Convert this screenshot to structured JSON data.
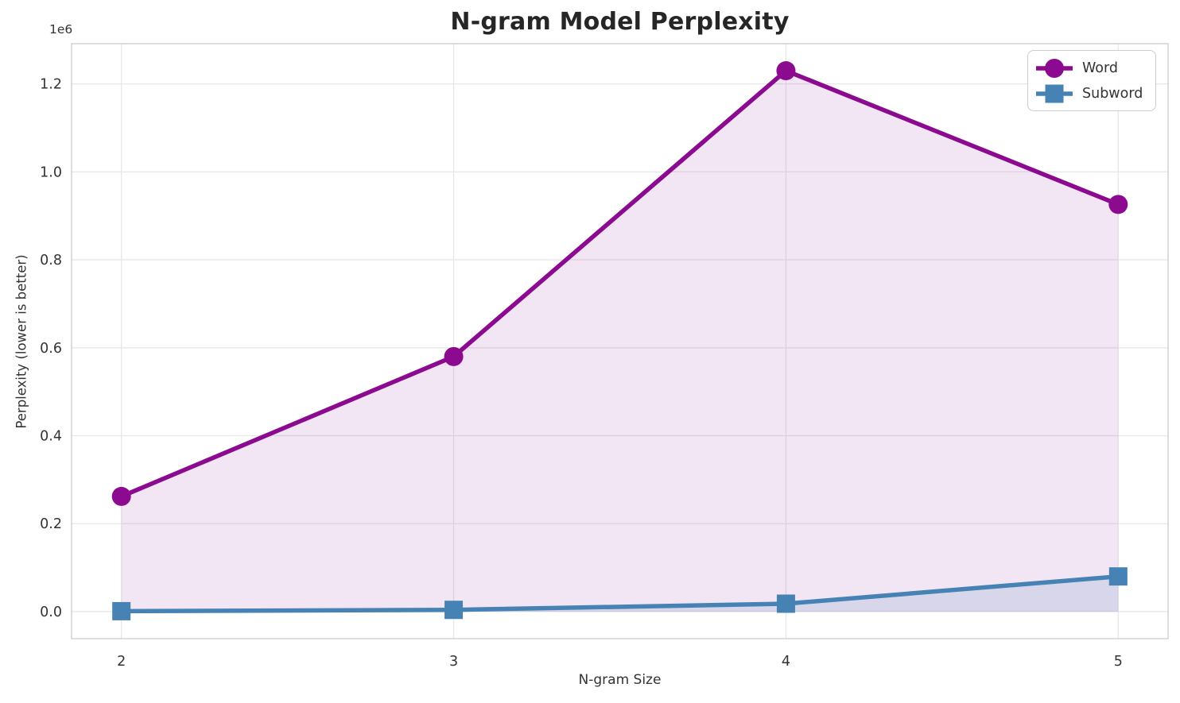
{
  "chart_data": {
    "type": "line",
    "title": "N-gram Model Perplexity",
    "xlabel": "N-gram Size",
    "ylabel": "Perplexity (lower is better)",
    "y_offset_label": "1e6",
    "x": [
      2,
      3,
      4,
      5
    ],
    "series": [
      {
        "name": "Word",
        "color": "#8B0A8F",
        "marker": "circle",
        "fill_alpha": 0.1,
        "values": [
          262000,
          580000,
          1230000,
          926000
        ]
      },
      {
        "name": "Subword",
        "color": "#4682B4",
        "marker": "square",
        "fill_alpha": 0.15,
        "values": [
          1000,
          4000,
          18000,
          80000
        ]
      }
    ],
    "xlim": [
      1.85,
      5.15
    ],
    "ylim": [
      -61500,
      1291500
    ],
    "xticks": [
      2,
      3,
      4,
      5
    ],
    "xtick_labels": [
      "2",
      "3",
      "4",
      "5"
    ],
    "yticks": [
      0,
      200000,
      400000,
      600000,
      800000,
      1000000,
      1200000
    ],
    "ytick_labels": [
      "0.0",
      "0.2",
      "0.4",
      "0.6",
      "0.8",
      "1.0",
      "1.2"
    ],
    "grid": true,
    "area_fill_to_zero": true,
    "legend_position": "upper right",
    "colors": {
      "grid": "#E7E7E7",
      "spine": "#CBCBCB",
      "tick_text": "#333333",
      "title_text": "#262626",
      "background": "#FFFFFF"
    }
  }
}
